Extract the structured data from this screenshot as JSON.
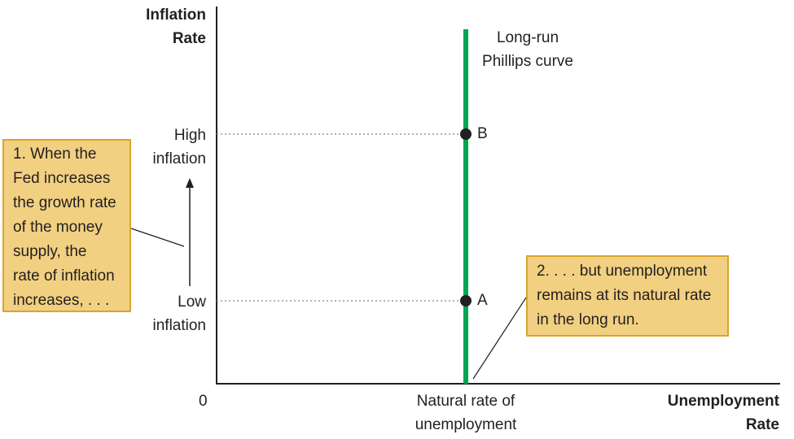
{
  "y_axis_title": [
    "Inflation",
    "Rate"
  ],
  "x_axis_title": [
    "Unemployment",
    "Rate"
  ],
  "origin_label": "0",
  "x_tick_label": [
    "Natural rate of",
    "unemployment"
  ],
  "curve_label": [
    "Long-run",
    "Phillips curve"
  ],
  "high_label": [
    "High",
    "inflation"
  ],
  "low_label": [
    "Low",
    "inflation"
  ],
  "point_b": "B",
  "point_a": "A",
  "note_1": [
    "1. When the",
    "Fed increases",
    "the growth rate",
    "of the money",
    "supply, the",
    "rate of inflation",
    "increases, . . ."
  ],
  "note_2": [
    "2. . . . but unemployment",
    "remains at its natural rate",
    "in the long run."
  ],
  "colors": {
    "curve": "#00a651",
    "note_fill": "#f2d081",
    "note_border": "#d9a52d",
    "guide_line": "#999999",
    "text": "#231f20"
  }
}
